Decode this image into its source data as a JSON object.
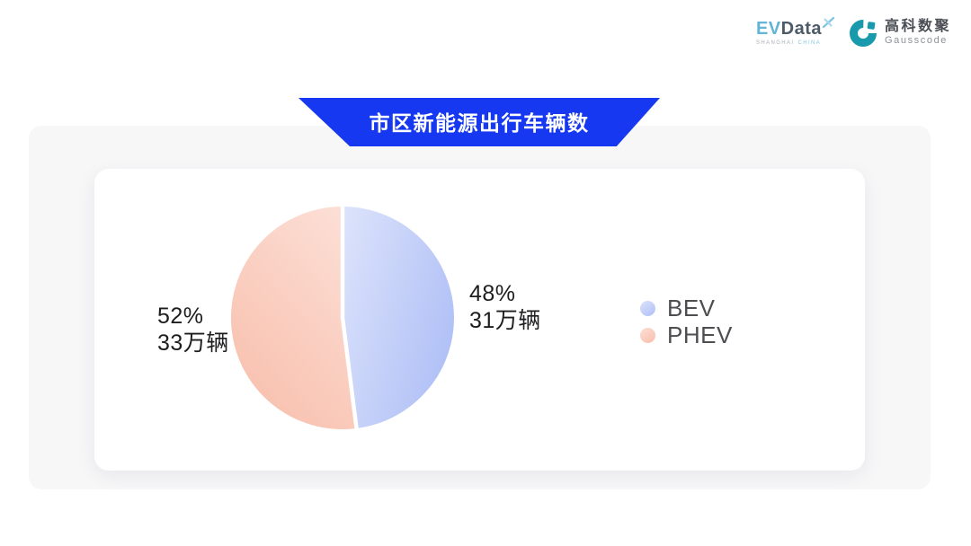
{
  "header": {
    "evdata": {
      "ev": "EV",
      "data": "Data",
      "sub_left": "SHANGHAI",
      "sub_right": "CHINA"
    },
    "gausscode": {
      "cn": "高科数聚",
      "en": "Gausscode"
    }
  },
  "banner": {
    "title": "市区新能源出行车辆数",
    "color": "#1538f0"
  },
  "chart_data": {
    "type": "pie",
    "title": "市区新能源出行车辆数",
    "unit": "万辆",
    "legend_position": "right",
    "start_angle_deg": 0,
    "gap_between_slices": true,
    "series": [
      {
        "name": "BEV",
        "percent": 48,
        "percent_label": "48%",
        "value": 31,
        "value_label": "31万辆",
        "color_start": "#dbe2fb",
        "color_end": "#b0c0f6"
      },
      {
        "name": "PHEV",
        "percent": 52,
        "percent_label": "52%",
        "value": 33,
        "value_label": "33万辆",
        "color_start": "#fcded5",
        "color_end": "#f8bfac"
      }
    ]
  }
}
